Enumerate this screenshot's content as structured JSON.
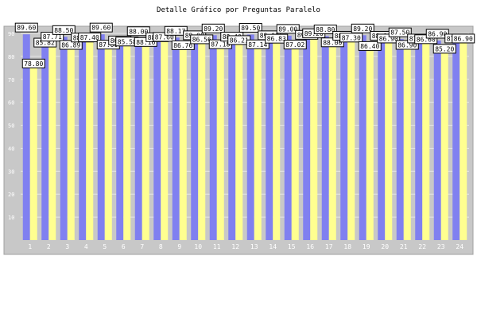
{
  "chart_data": {
    "type": "bar",
    "title": "Detalle Gráfico por Preguntas Paralelo",
    "xlabel": "",
    "ylabel": "",
    "ylim": [
      0,
      90
    ],
    "yticks": [
      10,
      20,
      30,
      40,
      50,
      60,
      70,
      80,
      90
    ],
    "grid": true,
    "legend": "none",
    "categories": [
      "1",
      "2",
      "3",
      "4",
      "5",
      "6",
      "7",
      "8",
      "9",
      "10",
      "11",
      "12",
      "13",
      "14",
      "15",
      "16",
      "17",
      "18",
      "19",
      "20",
      "21",
      "22",
      "23",
      "24"
    ],
    "series": [
      {
        "values": [
          89.6,
          85.82,
          88.5,
          88.0,
          89.6,
          86.75,
          88.0,
          88.16,
          88.17,
          89.0,
          89.2,
          88.4,
          89.5,
          89.0,
          89.0,
          89.2,
          88.8,
          88.8,
          89.2,
          88.8,
          87.5,
          87.6,
          86.9,
          87.6
        ]
      },
      {
        "values": [
          78.8,
          87.71,
          86.89,
          87.4,
          87.0,
          85.58,
          88.16,
          87.6,
          86.76,
          86.56,
          87.18,
          86.21,
          87.14,
          86.83,
          87.02,
          89.2,
          88.0,
          87.3,
          86.4,
          86.9,
          86.9,
          86.6,
          85.2,
          86.9
        ]
      }
    ],
    "colors": {
      "series1": "#8080f0",
      "series2": "#ffff90",
      "plot_bg": "#c8c8c8",
      "grid": "#e6e6e6"
    }
  }
}
